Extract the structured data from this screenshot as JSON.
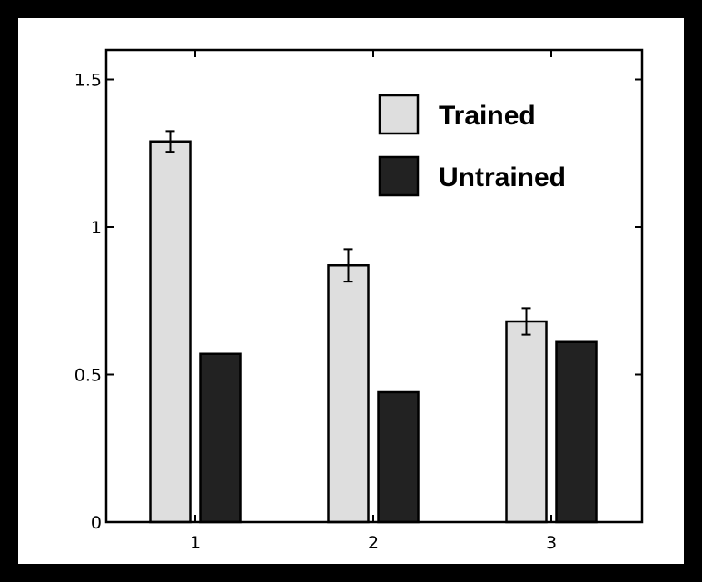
{
  "chart_data": {
    "type": "bar",
    "categories": [
      "1",
      "2",
      "3"
    ],
    "series": [
      {
        "name": "Trained",
        "values": [
          1.29,
          0.87,
          0.68
        ],
        "errors": [
          0.035,
          0.055,
          0.045
        ],
        "color": "#dedede"
      },
      {
        "name": "Untrained",
        "values": [
          0.57,
          0.44,
          0.61
        ],
        "color": "#222222"
      }
    ],
    "ylim": [
      0,
      1.6
    ],
    "yticks": [
      "0",
      "0.5",
      "1",
      "1.5"
    ],
    "xlabel": "",
    "ylabel": "",
    "title": "",
    "legend_position": "top-right",
    "grid": false
  },
  "colors": {
    "background": "#000000",
    "plot_background": "#ffffff",
    "axis": "#000000"
  }
}
